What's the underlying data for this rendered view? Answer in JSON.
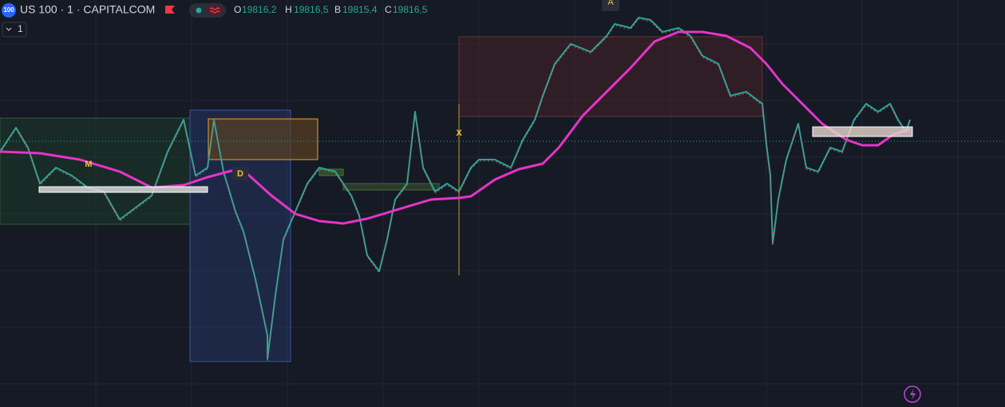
{
  "header": {
    "symbol_icon": "100",
    "title": "US 100 · 1 · CAPITALCOM",
    "interval": "1",
    "ohlc": [
      {
        "label": "O",
        "value": "19816,2"
      },
      {
        "label": "H",
        "value": "19816,5"
      },
      {
        "label": "B",
        "value": "19815,4"
      },
      {
        "label": "C",
        "value": "19816,5"
      }
    ]
  },
  "markers": [
    "A",
    "M",
    "D",
    "X"
  ]
}
